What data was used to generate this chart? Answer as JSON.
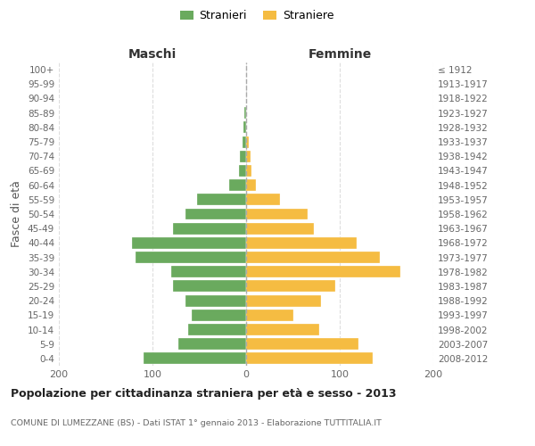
{
  "age_groups": [
    "0-4",
    "5-9",
    "10-14",
    "15-19",
    "20-24",
    "25-29",
    "30-34",
    "35-39",
    "40-44",
    "45-49",
    "50-54",
    "55-59",
    "60-64",
    "65-69",
    "70-74",
    "75-79",
    "80-84",
    "85-89",
    "90-94",
    "95-99",
    "100+"
  ],
  "birth_years": [
    "2008-2012",
    "2003-2007",
    "1998-2002",
    "1993-1997",
    "1988-1992",
    "1983-1987",
    "1978-1982",
    "1973-1977",
    "1968-1972",
    "1963-1967",
    "1958-1962",
    "1953-1957",
    "1948-1952",
    "1943-1947",
    "1938-1942",
    "1933-1937",
    "1928-1932",
    "1923-1927",
    "1918-1922",
    "1913-1917",
    "≤ 1912"
  ],
  "males": [
    110,
    72,
    62,
    58,
    65,
    78,
    80,
    118,
    122,
    78,
    65,
    52,
    18,
    8,
    7,
    4,
    3,
    2,
    0,
    0,
    0
  ],
  "females": [
    135,
    120,
    78,
    50,
    80,
    95,
    165,
    143,
    118,
    72,
    66,
    36,
    10,
    6,
    5,
    3,
    0,
    0,
    0,
    0,
    0
  ],
  "male_color": "#6aaa5e",
  "female_color": "#f5bc42",
  "background_color": "#ffffff",
  "grid_color": "#cccccc",
  "xlim": 200,
  "title": "Popolazione per cittadinanza straniera per età e sesso - 2013",
  "subtitle": "COMUNE DI LUMEZZANE (BS) - Dati ISTAT 1° gennaio 2013 - Elaborazione TUTTITALIA.IT",
  "xlabel_left": "Maschi",
  "xlabel_right": "Femmine",
  "ylabel_left": "Fasce di età",
  "legend_male": "Stranieri",
  "legend_female": "Straniere"
}
